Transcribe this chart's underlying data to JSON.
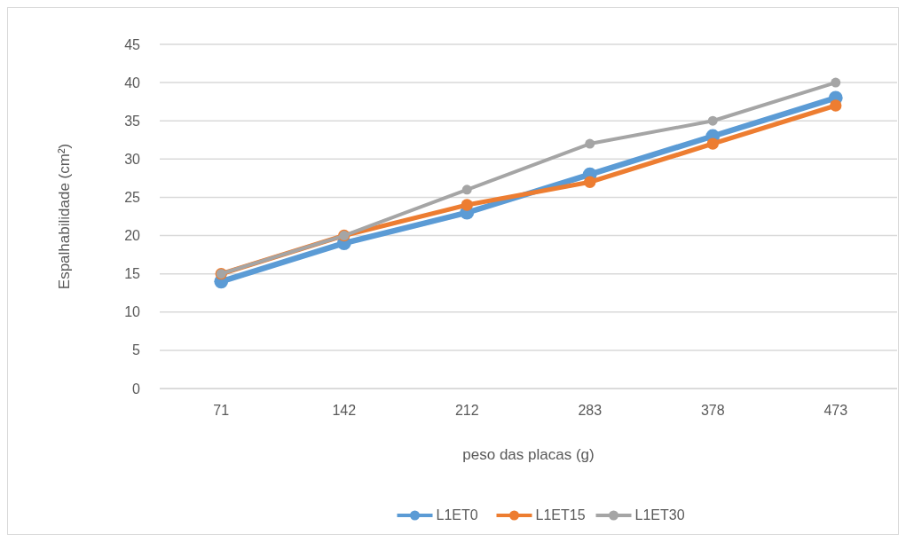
{
  "chart_data": {
    "type": "line",
    "xlabel": "peso das placas (g)",
    "ylabel": "Espalhabilidade (cm²)",
    "categories": [
      "71",
      "142",
      "212",
      "283",
      "378",
      "473"
    ],
    "series": [
      {
        "name": "L1ET0",
        "color": "#5b9bd5",
        "values": [
          14,
          19,
          23,
          28,
          33,
          38
        ]
      },
      {
        "name": "L1ET15",
        "color": "#ed7d31",
        "values": [
          15,
          20,
          24,
          27,
          32,
          37
        ]
      },
      {
        "name": "L1ET30",
        "color": "#a5a5a5",
        "values": [
          15,
          20,
          26,
          32,
          35,
          40
        ]
      }
    ],
    "ylim": [
      0,
      45
    ],
    "yticks": [
      0,
      5,
      10,
      15,
      20,
      25,
      30,
      35,
      40,
      45
    ],
    "grid": "y",
    "legend": "bottom",
    "marker": "circle",
    "line_style": "solid"
  }
}
